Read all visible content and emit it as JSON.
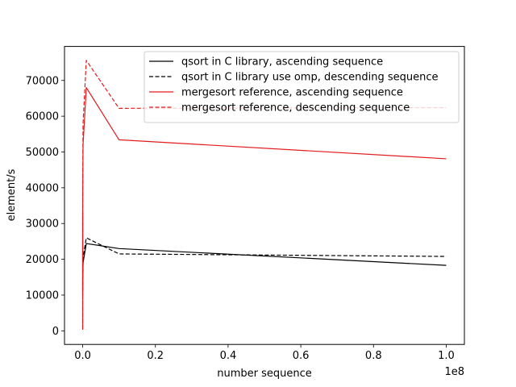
{
  "chart_data": {
    "type": "line",
    "title": "",
    "xlabel": "number sequence",
    "ylabel": "element/s",
    "x_offset_label": "1e8",
    "xlim": [
      -0.05,
      1.05
    ],
    "ylim": [
      -3800,
      79500
    ],
    "x_ticks": [
      0,
      0.2,
      0.4,
      0.6,
      0.8,
      1.0
    ],
    "x_tick_labels": [
      "0.0",
      "0.2",
      "0.4",
      "0.6",
      "0.8",
      "1.0"
    ],
    "y_ticks": [
      0,
      10000,
      20000,
      30000,
      40000,
      50000,
      60000,
      70000
    ],
    "y_tick_labels": [
      "0",
      "10000",
      "20000",
      "30000",
      "40000",
      "50000",
      "60000",
      "70000"
    ],
    "grid": false,
    "legend_position": "top-right",
    "series": [
      {
        "name": "qsort in C library, ascending sequence",
        "color": "#000000",
        "dash": "solid",
        "x": [
          0.0,
          1e-05,
          0.0001,
          0.001,
          0.01,
          0.1,
          1.0
        ],
        "y": [
          33000,
          11500,
          14500,
          19000,
          24400,
          23000,
          18300
        ]
      },
      {
        "name": "qsort in C library use omp, descending sequence",
        "color": "#000000",
        "dash": "dashed",
        "x": [
          0.0,
          1e-05,
          0.0001,
          0.001,
          0.01,
          0.1,
          1.0
        ],
        "y": [
          14000,
          10000,
          15000,
          20500,
          26000,
          21500,
          20800
        ]
      },
      {
        "name": "mergesort reference, ascending sequence",
        "color": "#e41a1c",
        "dash": "solid",
        "x": [
          0.0,
          1e-05,
          0.0001,
          0.001,
          0.01,
          0.1,
          1.0
        ],
        "y": [
          300,
          15000,
          35000,
          52000,
          68000,
          53400,
          48100
        ]
      },
      {
        "name": "mergesort reference, descending sequence",
        "color": "#e41a1c",
        "dash": "dashed",
        "x": [
          0.0,
          1e-05,
          0.0001,
          0.001,
          0.01,
          0.1,
          1.0
        ],
        "y": [
          500,
          18000,
          40000,
          58000,
          75600,
          62200,
          62400
        ]
      }
    ]
  }
}
